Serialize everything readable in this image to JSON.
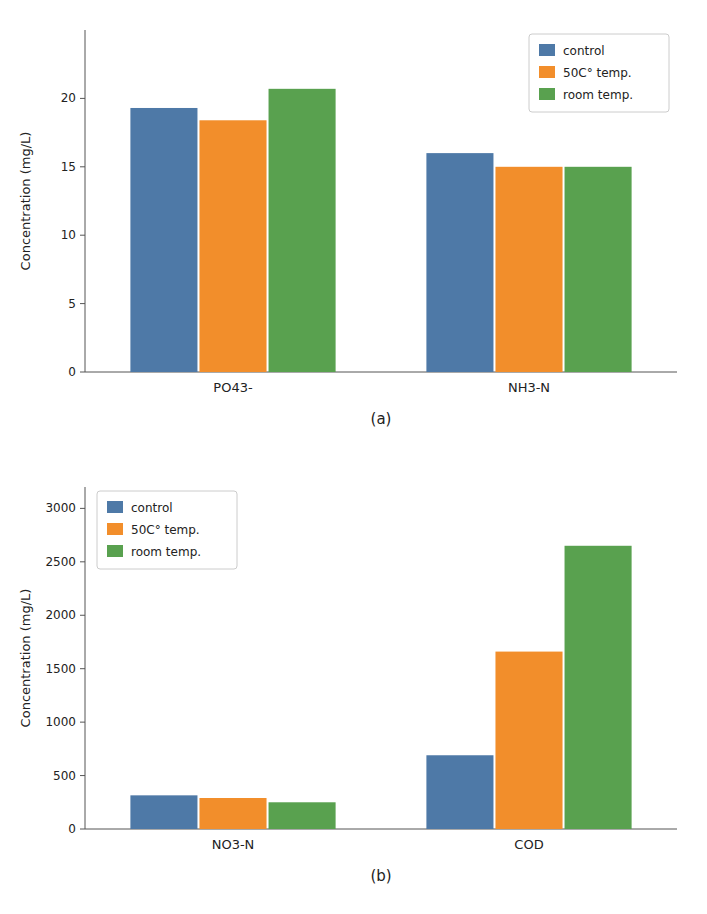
{
  "chart_data": [
    {
      "type": "bar",
      "title": "(a)",
      "categories": [
        "PO43-",
        "NH3-N"
      ],
      "series": [
        {
          "name": "control",
          "color": "#4e79a7",
          "values": [
            19.3,
            16.0
          ]
        },
        {
          "name": "50C° temp.",
          "color": "#f28e2b",
          "values": [
            18.4,
            15.0
          ]
        },
        {
          "name": "room temp.",
          "color": "#59a14f",
          "values": [
            20.7,
            15.0
          ]
        }
      ],
      "y_label": "Concentration (mg/L)",
      "ylim": [
        0,
        25
      ],
      "yticks": [
        0,
        5,
        10,
        15,
        20
      ],
      "grid": false,
      "legend": "upper right"
    },
    {
      "type": "bar",
      "title": "(b)",
      "categories": [
        "NO3-N",
        "COD"
      ],
      "series": [
        {
          "name": "control",
          "color": "#4e79a7",
          "values": [
            315,
            690
          ]
        },
        {
          "name": "50C° temp.",
          "color": "#f28e2b",
          "values": [
            290,
            1660
          ]
        },
        {
          "name": "room temp.",
          "color": "#59a14f",
          "values": [
            250,
            2650
          ]
        }
      ],
      "y_label": "Concentration (mg/L)",
      "ylim": [
        0,
        3200
      ],
      "yticks": [
        0,
        500,
        1000,
        1500,
        2000,
        2500,
        3000
      ],
      "grid": false,
      "legend": "upper left"
    }
  ]
}
